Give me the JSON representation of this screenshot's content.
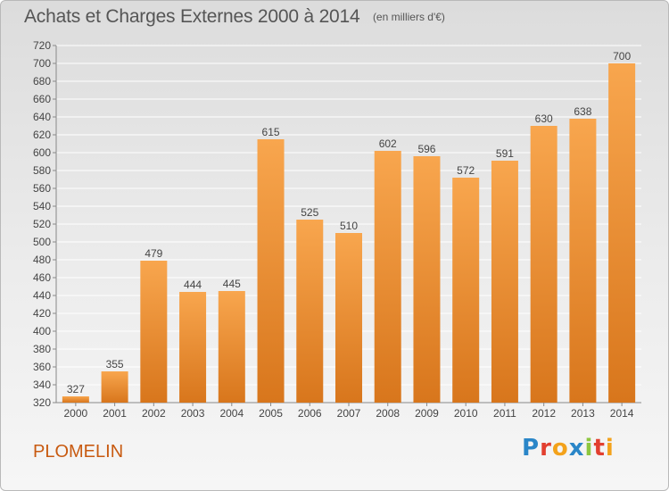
{
  "title": "Achats et Charges Externes 2000 à 2014",
  "unit": "(en milliers d'€)",
  "commune": "PLOMELIN",
  "logo": {
    "letters": [
      {
        "char": "P",
        "color": "#2a86c8"
      },
      {
        "char": "r",
        "color": "#e23f2f"
      },
      {
        "char": "o",
        "color": "#f3a21b"
      },
      {
        "char": "x",
        "color": "#2a86c8"
      },
      {
        "char": "i",
        "color": "#8dc63f"
      },
      {
        "char": "t",
        "color": "#e23f2f"
      },
      {
        "char": "i",
        "color": "#f3a21b"
      }
    ]
  },
  "colors": {
    "bar_top": "#f8a64e",
    "bar_bottom": "#d8761c",
    "grid": "#ffffff",
    "axis_text": "#444444"
  },
  "chart_data": {
    "type": "bar",
    "categories": [
      "2000",
      "2001",
      "2002",
      "2003",
      "2004",
      "2005",
      "2006",
      "2007",
      "2008",
      "2009",
      "2010",
      "2011",
      "2012",
      "2013",
      "2014"
    ],
    "values": [
      327,
      355,
      479,
      444,
      445,
      615,
      525,
      510,
      602,
      596,
      572,
      591,
      630,
      638,
      700
    ],
    "ylim": [
      320,
      720
    ],
    "yticks": [
      320,
      340,
      360,
      380,
      400,
      420,
      440,
      460,
      480,
      500,
      520,
      540,
      560,
      580,
      600,
      620,
      640,
      660,
      680,
      700,
      720
    ],
    "grid": true,
    "data_labels": true
  }
}
